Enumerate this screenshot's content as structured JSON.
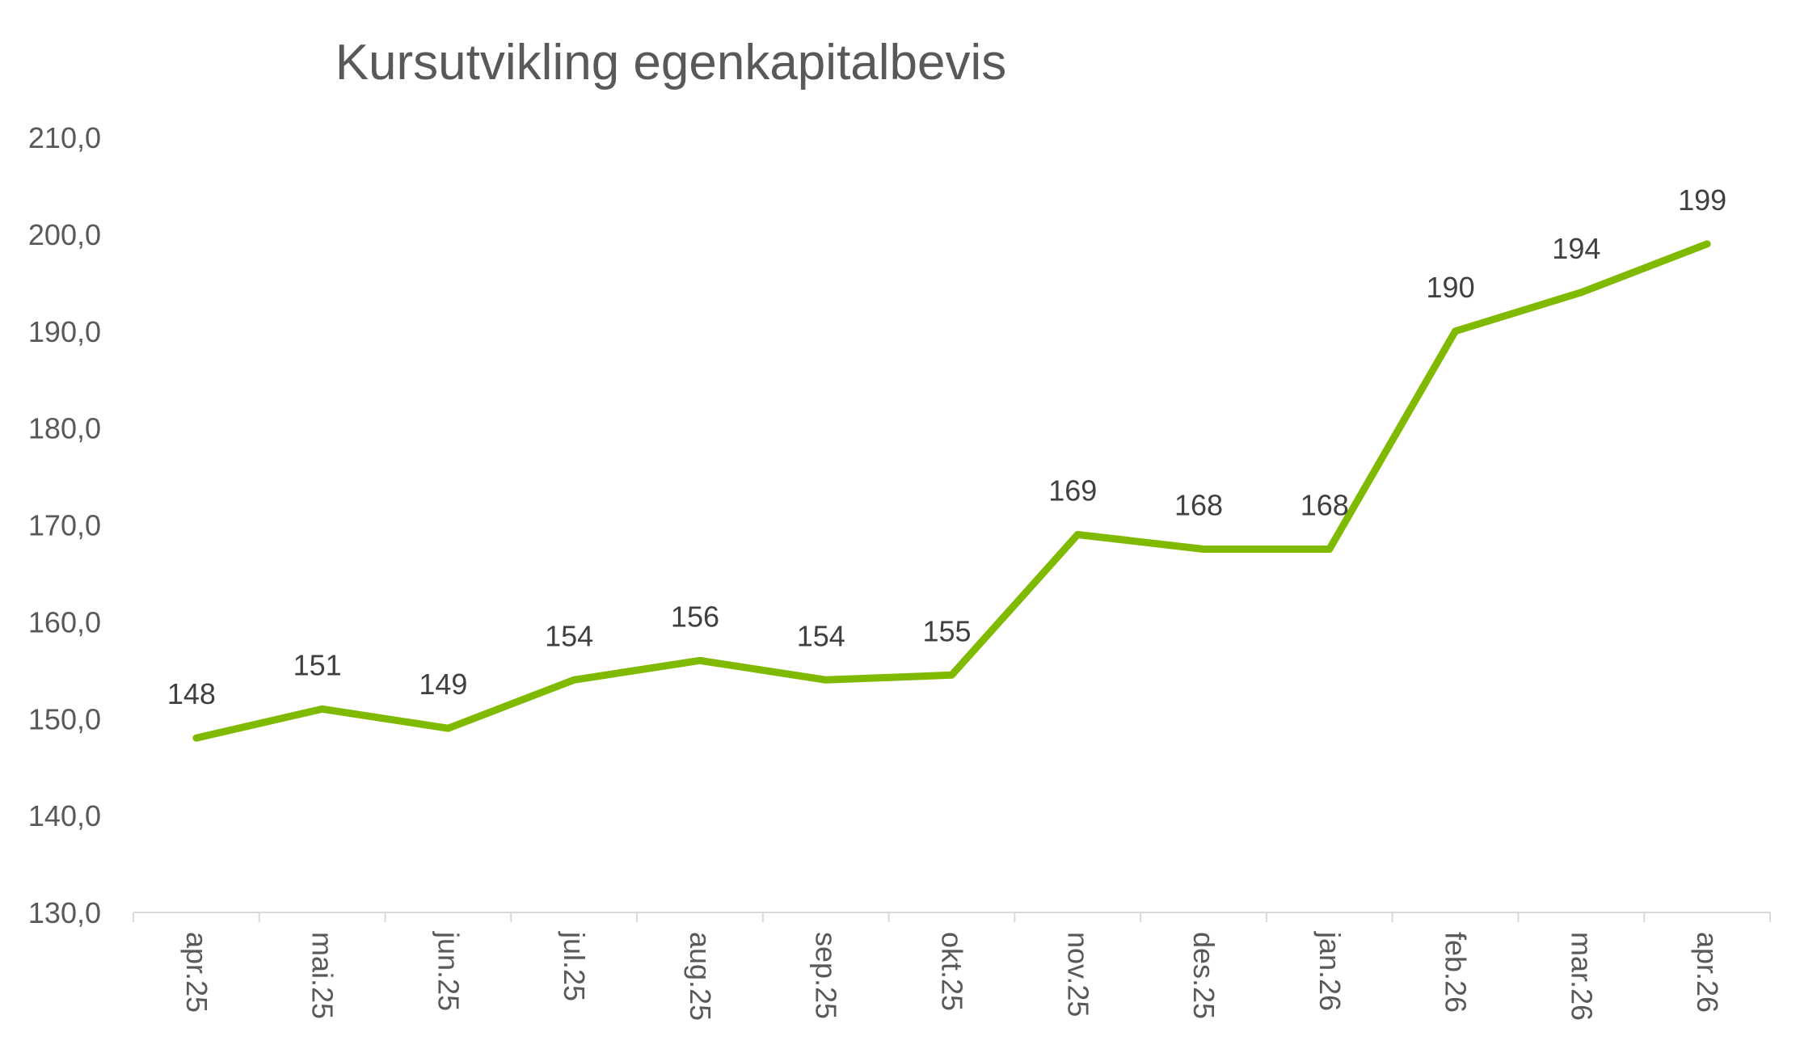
{
  "chart_data": {
    "type": "line",
    "title": "Kursutvikling egenkapitalbevis",
    "xlabel": "",
    "ylabel": "",
    "categories": [
      "apr.25",
      "mai.25",
      "jun.25",
      "jul.25",
      "aug.25",
      "sep.25",
      "okt.25",
      "nov.25",
      "des.25",
      "jan.26",
      "feb.26",
      "mar.26",
      "apr.26"
    ],
    "series": [
      {
        "values": [
          148,
          151,
          149,
          154,
          156,
          154,
          154.5,
          169,
          167.5,
          167.5,
          190,
          194,
          199
        ],
        "data_labels": [
          "148",
          "151",
          "149",
          "154",
          "156",
          "154",
          "155",
          "169",
          "168",
          "168",
          "190",
          "194",
          "199"
        ],
        "color": "#7fba00"
      }
    ],
    "ylim": [
      130,
      210
    ],
    "yticks": [
      "130,0",
      "140,0",
      "150,0",
      "160,0",
      "170,0",
      "180,0",
      "190,0",
      "200,0",
      "210,0"
    ],
    "grid": false,
    "legend": "none"
  }
}
